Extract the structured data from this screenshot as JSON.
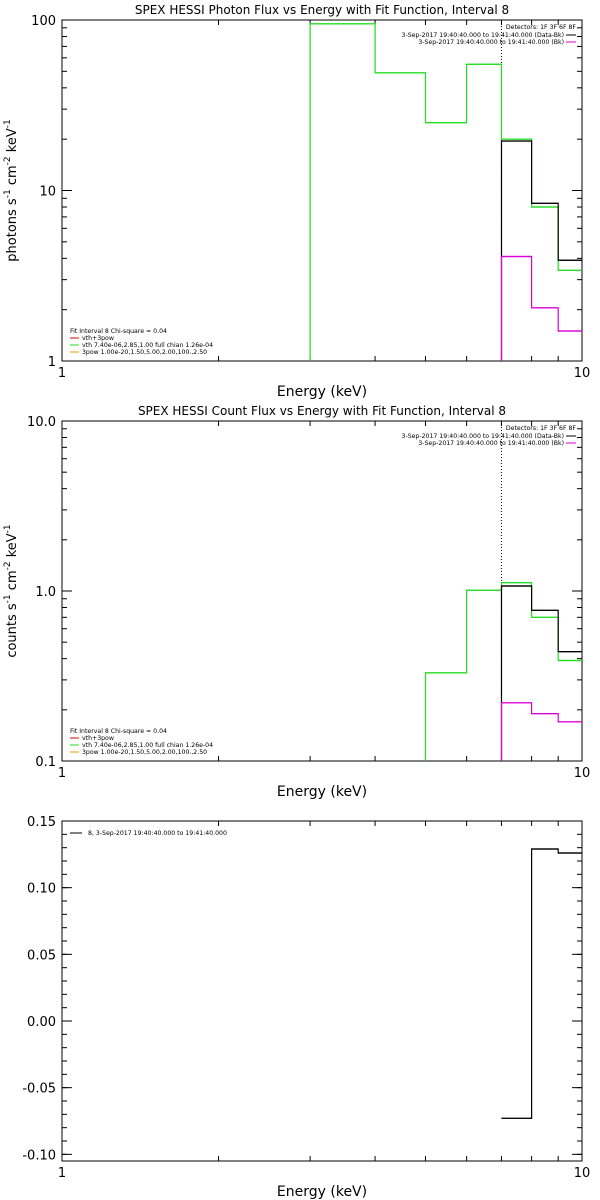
{
  "colors": {
    "black": "#000000",
    "green": "#22dd22",
    "magenta": "#dd00dd",
    "red": "#dd0000",
    "orange": "#dd9900"
  },
  "chart_data": [
    {
      "type": "line",
      "title": "SPEX HESSI Photon Flux vs Energy with Fit Function, Interval 8",
      "xlabel": "Energy (keV)",
      "ylabel_parts": {
        "a": "photons s",
        "b": "-1",
        "c": " cm",
        "d": "-2",
        "e": " keV",
        "f": "-1"
      },
      "xscale": "log",
      "yscale": "log",
      "xlim": [
        1,
        10
      ],
      "ylim": [
        1,
        100
      ],
      "xticks": [
        {
          "v": 1,
          "label": "1"
        },
        {
          "v": 10,
          "label": "10"
        }
      ],
      "yticks": [
        {
          "v": 1,
          "label": "1"
        },
        {
          "v": 10,
          "label": "10"
        },
        {
          "v": 100,
          "label": "100"
        }
      ],
      "vline_x": 7.0,
      "edges": [
        3.0,
        4.0,
        5.0,
        6.0,
        7.0,
        8.0,
        9.0,
        10.0
      ],
      "series": [
        {
          "name": "vth 7.40e-06,2.85,1.00  full chian 1.26e-04",
          "color": "#22dd22",
          "values": [
            95,
            49,
            25,
            55,
            20,
            8.0,
            3.4
          ]
        },
        {
          "name": "3-Sep-2017 19:40:40.000 to 19:41:40.000 (Data-Bk)",
          "color": "#000000",
          "values": [
            null,
            null,
            null,
            null,
            19.5,
            8.4,
            3.9
          ]
        },
        {
          "name": "3-Sep-2017 19:40:40.000 to 19:41:40.000 (Bk)",
          "color": "#dd00dd",
          "values": [
            null,
            null,
            null,
            null,
            4.1,
            2.05,
            1.5
          ]
        }
      ],
      "legend_top": {
        "header": "Detectors: 1F 3F 6F 8F",
        "lines": [
          "3-Sep-2017 19:40:40.000 to 19:41:40.000 (Data-Bk)",
          "3-Sep-2017 19:40:40.000 to 19:41:40.000 (Bk)"
        ]
      },
      "legend_bottom": {
        "header": "Fit Interval  8    Chi-square = 0.04",
        "lines": [
          "vth+3pow",
          "vth 7.40e-06,2.85,1.00  full chian 1.26e-04",
          "3pow  1.00e-20,1.50,5.00,2.00,100.,2.50"
        ]
      }
    },
    {
      "type": "line",
      "title": "SPEX HESSI Count Flux vs Energy with Fit Function, Interval 8",
      "xlabel": "Energy (keV)",
      "ylabel_parts": {
        "a": "counts s",
        "b": "-1",
        "c": " cm",
        "d": "-2",
        "e": " keV",
        "f": "-1"
      },
      "xscale": "log",
      "yscale": "log",
      "xlim": [
        1,
        10
      ],
      "ylim": [
        0.1,
        10
      ],
      "xticks": [
        {
          "v": 1,
          "label": "1"
        },
        {
          "v": 10,
          "label": "10"
        }
      ],
      "yticks": [
        {
          "v": 0.1,
          "label": "0.1"
        },
        {
          "v": 1,
          "label": "1.0"
        },
        {
          "v": 10,
          "label": "10.0"
        }
      ],
      "vline_x": 7.0,
      "edges": [
        5.0,
        6.0,
        7.0,
        8.0,
        9.0,
        10.0
      ],
      "series": [
        {
          "name": "vth 7.40e-06,2.85,1.00  full chian 1.26e-04",
          "color": "#22dd22",
          "values": [
            0.33,
            1.01,
            1.12,
            0.7,
            0.39
          ]
        },
        {
          "name": "3-Sep-2017 19:40:40.000 to 19:41:40.000 (Data-Bk)",
          "color": "#000000",
          "values": [
            null,
            null,
            1.07,
            0.77,
            0.44
          ]
        },
        {
          "name": "3-Sep-2017 19:40:40.000 to 19:41:40.000 (Bk)",
          "color": "#dd00dd",
          "values": [
            null,
            null,
            0.22,
            0.19,
            0.17
          ]
        }
      ],
      "legend_top": {
        "header": "Detectors: 1F 3F 6F 8F",
        "lines": [
          "3-Sep-2017 19:40:40.000 to 19:41:40.000 (Data-Bk)",
          "3-Sep-2017 19:40:40.000 to 19:41:40.000 (Bk)"
        ]
      },
      "legend_bottom": {
        "header": "Fit Interval  8    Chi-square = 0.04",
        "lines": [
          "vth+3pow",
          "vth 7.40e-06,2.85,1.00  full chian 1.26e-04",
          "3pow  1.00e-20,1.50,5.00,2.00,100.,2.50"
        ]
      }
    },
    {
      "type": "line",
      "title": "",
      "xlabel": "Energy (keV)",
      "xscale": "log",
      "yscale": "linear",
      "xlim": [
        1,
        10
      ],
      "ylim": [
        -0.105,
        0.15
      ],
      "xticks": [
        {
          "v": 1,
          "label": "1"
        },
        {
          "v": 10,
          "label": "10"
        }
      ],
      "yticks": [
        {
          "v": 0.15,
          "label": "0.15"
        },
        {
          "v": 0.1,
          "label": "0.10"
        },
        {
          "v": 0.05,
          "label": "0.05"
        },
        {
          "v": 0.0,
          "label": "0.00"
        },
        {
          "v": -0.05,
          "label": "-0.05"
        },
        {
          "v": -0.1,
          "label": "-0.10"
        }
      ],
      "edges": [
        7.0,
        8.0,
        9.0,
        10.0
      ],
      "series": [
        {
          "name": "8, 3-Sep-2017 19:40:40.000 to 19:41:40.000",
          "color": "#000000",
          "values": [
            -0.073,
            0.129,
            0.126
          ]
        }
      ],
      "legend_top": {
        "lines": [
          "8, 3-Sep-2017 19:40:40.000 to 19:41:40.000"
        ]
      }
    }
  ]
}
